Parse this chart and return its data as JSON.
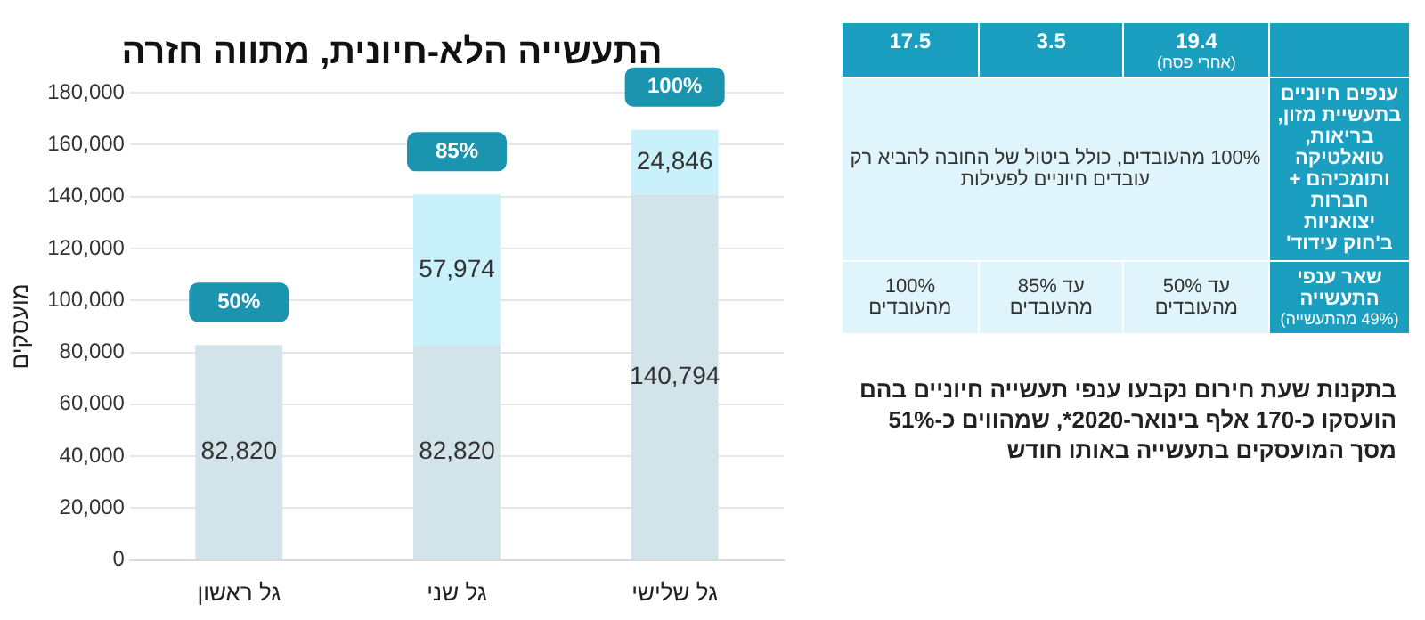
{
  "chart_data": [
    {
      "type": "bar",
      "title": "התעשייה הלא-חיונית, מתווה חזרה",
      "ylabel": "מועסקים",
      "categories": [
        "גל ראשון",
        "גל שני",
        "גל שלישי"
      ],
      "stacked": true,
      "series": [
        {
          "color": "#d3e3ea",
          "values": [
            82820,
            82820,
            140794
          ],
          "value_labels": [
            "82,820",
            "82,820",
            "140,794"
          ]
        },
        {
          "color": "#c9f1fb",
          "values": [
            null,
            57974,
            24846
          ],
          "value_labels": [
            null,
            "57,974",
            "24,846"
          ]
        }
      ],
      "ylim": [
        0,
        180000
      ],
      "yticks": [
        {
          "value": 0,
          "label": "0"
        },
        {
          "value": 20000,
          "label": "20,000"
        },
        {
          "value": 40000,
          "label": "40,000"
        },
        {
          "value": 60000,
          "label": "60,000"
        },
        {
          "value": 80000,
          "label": "80,000"
        },
        {
          "value": 100000,
          "label": "100,000"
        },
        {
          "value": 120000,
          "label": "120,000"
        },
        {
          "value": 140000,
          "label": "140,000"
        },
        {
          "value": 160000,
          "label": "160,000"
        },
        {
          "value": 180000,
          "label": "180,000"
        }
      ],
      "grid": "y",
      "legend": false,
      "annotations": [
        "50%",
        "85%",
        "100%"
      ]
    },
    {
      "type": "other",
      "annotations": [
        "19.4",
        "(אחרי פסח)",
        "3.5",
        "17.5",
        "ענפים חיוניים בתעשיית מזון, בריאות, טואלטיקה ותומכיהם + חברות יצואניות ב'חוק עידוד'",
        "100% מהעובדים, כולל ביטול של החובה להביא רק עובדים חיוניים לפעילות",
        "שאר ענפי התעשייה",
        "(49% מהתעשייה)",
        "עד 50% מהעובדים",
        "עד 85% מהעובדים",
        "100% מהעובדים",
        "בתקנות שעת חירום נקבעו ענפי תעשייה חיוניים בהם הועסקו כ-170 אלף בינואר-2020*, שמהווים כ-51% מסך המועסקים בתעשייה באותו חודש"
      ]
    }
  ]
}
